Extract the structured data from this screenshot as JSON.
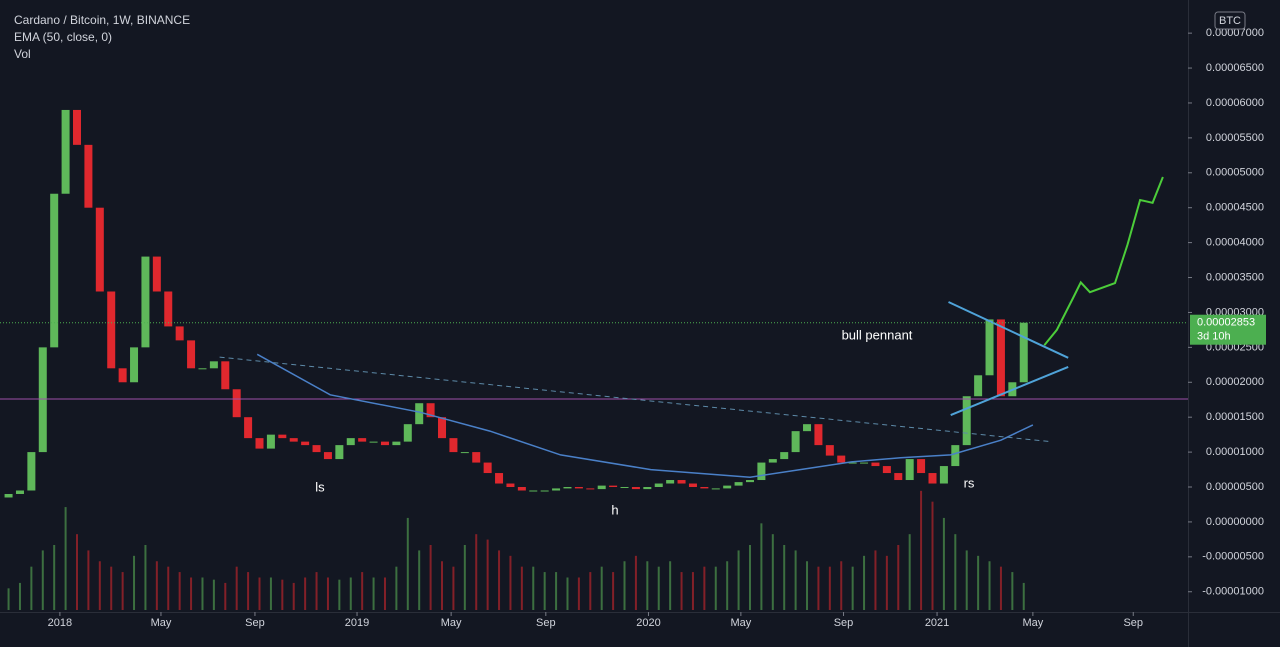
{
  "chart_data": {
    "type": "candlestick",
    "title": "Cardano / Bitcoin, 1W, BINANCE",
    "indicators": [
      "EMA (50, close, 0)",
      "Vol"
    ],
    "currency": "BTC",
    "up_color": "#5fb85a",
    "down_color": "#e0282e",
    "first_open": 3.5e-06,
    "close": [
      4e-06,
      4.5e-06,
      1e-05,
      2.5e-05,
      4.7e-05,
      5.9e-05,
      5.4e-05,
      4.5e-05,
      3.3e-05,
      2.2e-05,
      2e-05,
      2.5e-05,
      3.8e-05,
      3.3e-05,
      2.8e-05,
      2.6e-05,
      2.2e-05,
      2.2e-05,
      2.3e-05,
      1.9e-05,
      1.5e-05,
      1.2e-05,
      1.05e-05,
      1.25e-05,
      1.2e-05,
      1.15e-05,
      1.1e-05,
      1e-05,
      9e-06,
      1.1e-05,
      1.2e-05,
      1.15e-05,
      1.15e-05,
      1.1e-05,
      1.15e-05,
      1.4e-05,
      1.7e-05,
      1.5e-05,
      1.2e-05,
      1e-05,
      1e-05,
      8.5e-06,
      7e-06,
      5.5e-06,
      5e-06,
      4.5e-06,
      4.5e-06,
      4.5e-06,
      4.8e-06,
      5e-06,
      4.8e-06,
      4.7e-06,
      5.2e-06,
      5e-06,
      5e-06,
      4.7e-06,
      5e-06,
      5.5e-06,
      6e-06,
      5.5e-06,
      5e-06,
      4.8e-06,
      4.8e-06,
      5.2e-06,
      5.7e-06,
      6e-06,
      8.5e-06,
      9e-06,
      1e-05,
      1.3e-05,
      1.4e-05,
      1.1e-05,
      9.5e-06,
      8.5e-06,
      8.5e-06,
      8.5e-06,
      8e-06,
      7e-06,
      6e-06,
      9e-06,
      7e-06,
      5.5e-06,
      8e-06,
      1.1e-05,
      1.8e-05,
      2.1e-05,
      2.9e-05,
      1.8e-05,
      2e-05,
      2.853e-05
    ],
    "volume": [
      20,
      25,
      40,
      55,
      60,
      95,
      70,
      55,
      45,
      40,
      35,
      50,
      60,
      45,
      40,
      35,
      30,
      30,
      28,
      25,
      40,
      35,
      30,
      30,
      28,
      25,
      30,
      35,
      30,
      28,
      30,
      35,
      30,
      30,
      40,
      85,
      55,
      60,
      45,
      40,
      60,
      70,
      65,
      55,
      50,
      40,
      40,
      35,
      35,
      30,
      30,
      35,
      40,
      35,
      45,
      50,
      45,
      40,
      45,
      35,
      35,
      40,
      40,
      45,
      55,
      60,
      80,
      70,
      60,
      55,
      45,
      40,
      40,
      45,
      40,
      50,
      55,
      50,
      60,
      70,
      110,
      100,
      85,
      70,
      55,
      50,
      45,
      40,
      35,
      25
    ],
    "vol_ylim": [
      0,
      120
    ],
    "xlim": [
      -0.4,
      103.4
    ],
    "xticks": [
      {
        "value": 4.5,
        "label": "2018"
      },
      {
        "value": 13.36,
        "label": "May"
      },
      {
        "value": 21.6,
        "label": "Sep"
      },
      {
        "value": 30.55,
        "label": "2019"
      },
      {
        "value": 38.8,
        "label": "May"
      },
      {
        "value": 47.1,
        "label": "Sep"
      },
      {
        "value": 56.1,
        "label": "2020"
      },
      {
        "value": 64.2,
        "label": "May"
      },
      {
        "value": 73.2,
        "label": "Sep"
      },
      {
        "value": 81.4,
        "label": "2021"
      },
      {
        "value": 89.8,
        "label": "May"
      },
      {
        "value": 98.6,
        "label": "Sep"
      }
    ],
    "ylim": [
      -1.29e-05,
      7.36e-05
    ],
    "yticks": [
      {
        "value": 7e-05,
        "label": "0.00007000"
      },
      {
        "value": 6.5e-05,
        "label": "0.00006500"
      },
      {
        "value": 6e-05,
        "label": "0.00006000"
      },
      {
        "value": 5.5e-05,
        "label": "0.00005500"
      },
      {
        "value": 5e-05,
        "label": "0.00005000"
      },
      {
        "value": 4.5e-05,
        "label": "0.00004500"
      },
      {
        "value": 4e-05,
        "label": "0.00004000"
      },
      {
        "value": 3.5e-05,
        "label": "0.00003500"
      },
      {
        "value": 3e-05,
        "label": "0.00003000"
      },
      {
        "value": 2.5e-05,
        "label": "0.00002500"
      },
      {
        "value": 2e-05,
        "label": "0.00002000"
      },
      {
        "value": 1.5e-05,
        "label": "0.00001500"
      },
      {
        "value": 1e-05,
        "label": "0.00001000"
      },
      {
        "value": 5e-06,
        "label": "0.00000500"
      },
      {
        "value": 0,
        "label": "0.00000000"
      },
      {
        "value": -5e-06,
        "label": "-0.00000500"
      },
      {
        "value": -1e-05,
        "label": "-0.00001000"
      }
    ],
    "last_price_label": "0.00002853",
    "countdown": "3d 10h",
    "price_label_color": "#4caf50",
    "ema": {
      "color": "#4a80c8",
      "x": [
        21.8,
        28.2,
        36.1,
        42.2,
        48.4,
        56.3,
        65.0,
        69.4,
        73.9,
        78.2,
        82.6,
        87.0,
        89.8
      ],
      "values": [
        2.4e-05,
        1.82e-05,
        1.57e-05,
        1.3e-05,
        9.6e-06,
        7.5e-06,
        6.4e-06,
        7.5e-06,
        8.6e-06,
        9.2e-06,
        9.6e-06,
        1.17e-05,
        1.39e-05
      ]
    },
    "level": {
      "color": "#9c4fa8",
      "value": 1.76e-05
    },
    "trendline": {
      "color": "#5d8aa8",
      "x": [
        18.5,
        91.3
      ],
      "values": [
        2.36e-05,
        1.15e-05
      ]
    },
    "pennant": {
      "color": "#4fa3d9",
      "upper": {
        "x": [
          82.4,
          92.9
        ],
        "values": [
          3.15e-05,
          2.35e-05
        ]
      },
      "lower": {
        "x": [
          82.6,
          92.9
        ],
        "values": [
          1.53e-05,
          2.22e-05
        ]
      }
    },
    "projection": {
      "color": "#4ccd3a",
      "x": [
        90.8,
        91.9,
        93.3,
        94.0,
        94.8,
        97.0,
        98.1,
        99.2,
        100.3,
        101.2
      ],
      "values": [
        2.53e-05,
        2.75e-05,
        3.2e-05,
        3.43e-05,
        3.29e-05,
        3.42e-05,
        3.97e-05,
        4.61e-05,
        4.57e-05,
        4.94e-05
      ]
    },
    "annotations": [
      "ls",
      "h",
      "rs",
      "bull pennant"
    ]
  }
}
